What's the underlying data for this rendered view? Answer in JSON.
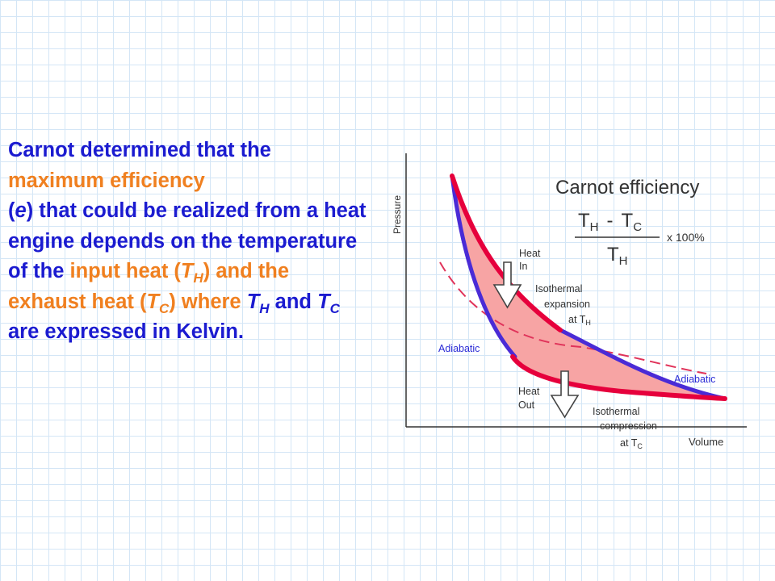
{
  "text": {
    "intro": "Carnot determined that the",
    "max_eff": "maximum efficiency",
    "e_open": "(",
    "e": "e",
    "e_rest": ") that could be realized from a heat engine depends on the temperature of the",
    "input_heat": "input heat",
    "th_open": " (",
    "T": "T",
    "H": "H",
    "C": "C",
    "th_close": ") and the",
    "exhaust_heat": "exhaust heat",
    "where": ") where",
    "and": "and",
    "ending": "are expressed in Kelvin."
  },
  "diagram": {
    "y_axis_label": "Pressure",
    "x_axis_label": "Volume",
    "formula_title": "Carnot efficiency",
    "formula_T": "T",
    "formula_H": "H",
    "formula_C": "C",
    "formula_minus": "-",
    "formula_percent": "x 100%",
    "heat_in_line1": "Heat",
    "heat_in_line2": "In",
    "heat_out_line1": "Heat",
    "heat_out_line2": "Out",
    "iso_exp_line1": "Isothermal",
    "iso_exp_line2": "expansion",
    "iso_exp_at": "at",
    "adiabatic_left": "Adiabatic",
    "adiabatic_right": "Adiabatic",
    "iso_comp_line1": "Isothermal",
    "iso_comp_line2": "compression",
    "iso_comp_at": "at",
    "colors": {
      "isotherm": "#e6003c",
      "adiabat": "#4a2bd6",
      "fill": "#f7a4a4",
      "dashed": "#e0335a",
      "text_blue": "#1b1bd0",
      "highlight": "#f08020"
    }
  }
}
